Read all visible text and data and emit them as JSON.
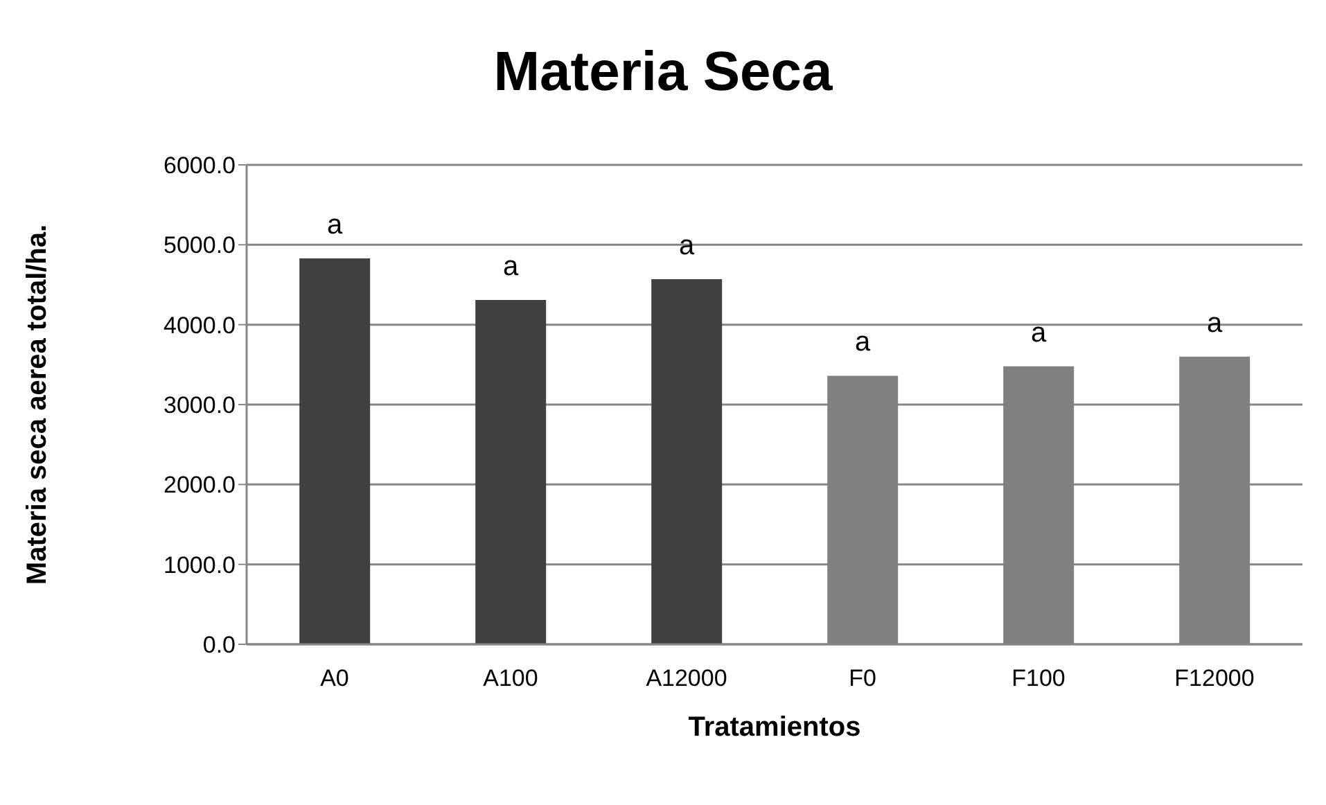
{
  "chart_data": {
    "type": "bar",
    "title": "Materia Seca",
    "xlabel": "Tratamientos",
    "ylabel": "Materia seca aerea total/ha.",
    "categories": [
      "A0",
      "A100",
      "A12000",
      "F0",
      "F100",
      "F12000"
    ],
    "values": [
      4830,
      4310,
      4570,
      3360,
      3480,
      3600
    ],
    "colors": [
      "#404040",
      "#404040",
      "#404040",
      "#808080",
      "#808080",
      "#808080"
    ],
    "value_labels": [
      "a",
      "a",
      "a",
      "a",
      "a",
      "a"
    ],
    "ylim": [
      0,
      6000
    ],
    "yticks": [
      {
        "value": 0,
        "label": "0.0"
      },
      {
        "value": 1000,
        "label": "1000.0"
      },
      {
        "value": 2000,
        "label": "2000.0"
      },
      {
        "value": 3000,
        "label": "3000.0"
      },
      {
        "value": 4000,
        "label": "4000.0"
      },
      {
        "value": 5000,
        "label": "5000.0"
      },
      {
        "value": 6000,
        "label": "6000.0"
      }
    ],
    "grid": "y",
    "legend": false
  }
}
